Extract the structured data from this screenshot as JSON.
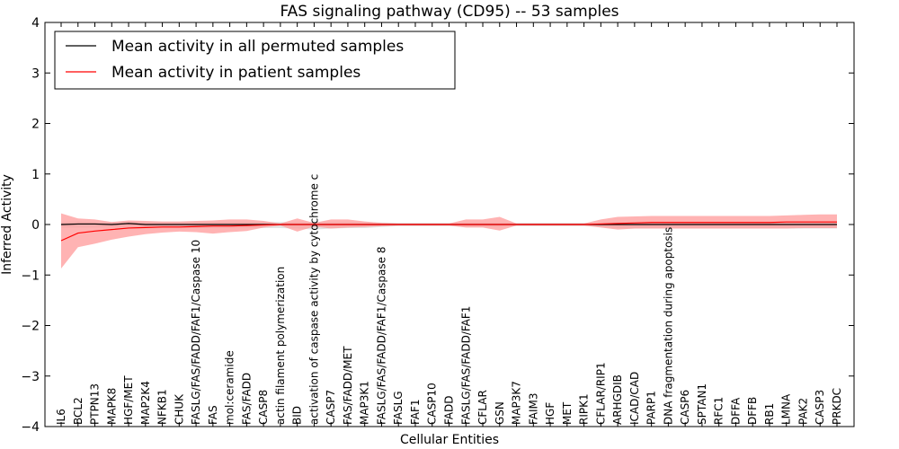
{
  "chart_data": {
    "type": "line",
    "title": "FAS signaling pathway (CD95) -- 53 samples",
    "xlabel": "Cellular Entities",
    "ylabel": "Inferred Activity",
    "ylim": [
      -4,
      4
    ],
    "yticks": [
      4,
      3,
      2,
      1,
      0,
      -1,
      -2,
      -3,
      -4
    ],
    "ytick_labels": [
      "4",
      "3",
      "2",
      "1",
      "0",
      "−1",
      "−2",
      "−3",
      "−4"
    ],
    "grid": false,
    "legend_position": "top-left",
    "categories": [
      "IL6",
      "BCL2",
      "PTPN13",
      "MAPK8",
      "HGF/MET",
      "MAP2K4",
      "NFKB1",
      "CHUK",
      "FASLG/FAS/FADD/FAF1/Caspase 10",
      "FAS",
      "mol:ceramide",
      "FAS/FADD",
      "CASP8",
      "actin filament polymerization",
      "BID",
      "activation of caspase activity by cytochrome c",
      "CASP7",
      "FAS/FADD/MET",
      "MAP3K1",
      "FASLG/FAS/FADD/FAF1/Caspase 8",
      "FASLG",
      "FAF1",
      "CASP10",
      "FADD",
      "FASLG/FAS/FADD/FAF1",
      "CFLAR",
      "GSN",
      "MAP3K7",
      "FAIM3",
      "HGF",
      "MET",
      "RIPK1",
      "CFLAR/RIP1",
      "ARHGDIB",
      "ICAD/CAD",
      "PARP1",
      "DNA fragmentation during apoptosis",
      "CASP6",
      "SPTAN1",
      "RFC1",
      "DFFA",
      "DFFB",
      "RB1",
      "LMNA",
      "PAK2",
      "CASP3",
      "PRKDC"
    ],
    "series": [
      {
        "name": "Mean activity in all permuted samples",
        "color": "#000000",
        "band_color": "#d0d0d0",
        "values": [
          0.0,
          0.01,
          0.01,
          0.0,
          0.02,
          0.0,
          0.0,
          0.0,
          0.0,
          0.0,
          0.0,
          0.0,
          0.0,
          0.0,
          0.0,
          0.0,
          0.0,
          0.0,
          0.0,
          0.0,
          0.0,
          0.0,
          0.0,
          0.0,
          0.0,
          0.0,
          0.0,
          0.0,
          0.0,
          0.0,
          0.0,
          0.0,
          0.0,
          0.0,
          0.0,
          0.0,
          0.0,
          0.0,
          0.0,
          0.0,
          0.0,
          0.0,
          0.0,
          0.0,
          0.0,
          0.0,
          0.0
        ],
        "band_upper": [
          0.05,
          0.06,
          0.05,
          0.05,
          0.06,
          0.05,
          0.05,
          0.05,
          0.05,
          0.05,
          0.05,
          0.05,
          0.05,
          0.05,
          0.05,
          0.05,
          0.05,
          0.05,
          0.05,
          0.04,
          0.03,
          0.03,
          0.03,
          0.03,
          0.04,
          0.04,
          0.04,
          0.03,
          0.03,
          0.03,
          0.03,
          0.03,
          0.04,
          0.05,
          0.05,
          0.05,
          0.05,
          0.05,
          0.05,
          0.05,
          0.05,
          0.05,
          0.05,
          0.05,
          0.05,
          0.05,
          0.05
        ],
        "band_lower": [
          -0.06,
          -0.06,
          -0.06,
          -0.06,
          -0.06,
          -0.06,
          -0.06,
          -0.06,
          -0.07,
          -0.07,
          -0.07,
          -0.07,
          -0.07,
          -0.07,
          -0.08,
          -0.1,
          -0.08,
          -0.07,
          -0.07,
          -0.05,
          -0.03,
          -0.03,
          -0.03,
          -0.03,
          -0.05,
          -0.05,
          -0.05,
          -0.03,
          -0.03,
          -0.03,
          -0.03,
          -0.03,
          -0.05,
          -0.07,
          -0.08,
          -0.08,
          -0.08,
          -0.08,
          -0.08,
          -0.08,
          -0.08,
          -0.08,
          -0.08,
          -0.08,
          -0.08,
          -0.08,
          -0.08
        ]
      },
      {
        "name": "Mean activity in patient samples",
        "color": "#ff0000",
        "band_color": "#ff9a9a",
        "values": [
          -0.32,
          -0.17,
          -0.13,
          -0.1,
          -0.07,
          -0.06,
          -0.05,
          -0.05,
          -0.04,
          -0.03,
          -0.03,
          -0.02,
          -0.01,
          0.0,
          0.0,
          0.0,
          0.0,
          0.0,
          0.0,
          0.0,
          0.0,
          0.0,
          0.0,
          0.0,
          0.0,
          0.0,
          0.0,
          0.0,
          0.0,
          0.0,
          0.0,
          0.0,
          0.01,
          0.02,
          0.03,
          0.04,
          0.04,
          0.04,
          0.04,
          0.04,
          0.04,
          0.04,
          0.04,
          0.05,
          0.05,
          0.05,
          0.05
        ],
        "band_upper": [
          0.22,
          0.12,
          0.1,
          0.05,
          0.08,
          0.07,
          0.06,
          0.06,
          0.07,
          0.08,
          0.1,
          0.1,
          0.07,
          0.02,
          0.12,
          0.03,
          0.1,
          0.1,
          0.06,
          0.03,
          0.02,
          0.02,
          0.02,
          0.02,
          0.1,
          0.1,
          0.15,
          0.02,
          0.02,
          0.02,
          0.02,
          0.02,
          0.1,
          0.15,
          0.16,
          0.17,
          0.17,
          0.17,
          0.17,
          0.17,
          0.17,
          0.17,
          0.17,
          0.18,
          0.19,
          0.2,
          0.2
        ],
        "band_lower": [
          -0.87,
          -0.45,
          -0.38,
          -0.3,
          -0.24,
          -0.19,
          -0.16,
          -0.14,
          -0.15,
          -0.18,
          -0.15,
          -0.13,
          -0.06,
          -0.02,
          -0.14,
          -0.04,
          -0.08,
          -0.06,
          -0.05,
          -0.03,
          -0.02,
          -0.02,
          -0.02,
          -0.02,
          -0.06,
          -0.06,
          -0.12,
          -0.02,
          -0.02,
          -0.02,
          -0.02,
          -0.02,
          -0.06,
          -0.1,
          -0.08,
          -0.08,
          -0.08,
          -0.08,
          -0.08,
          -0.08,
          -0.08,
          -0.08,
          -0.08,
          -0.08,
          -0.07,
          -0.07,
          -0.07
        ]
      }
    ]
  }
}
